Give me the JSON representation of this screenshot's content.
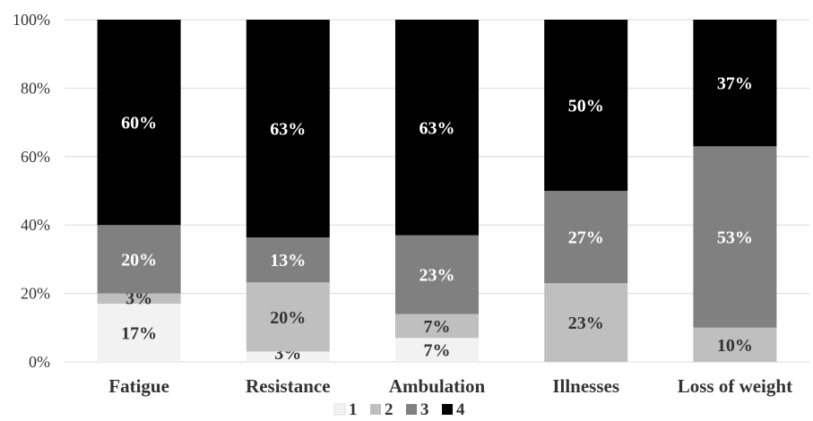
{
  "chart_data": {
    "type": "bar",
    "stacked": true,
    "normalized": true,
    "categories": [
      "Fatigue",
      "Resistance",
      "Ambulation",
      "Illnesses",
      "Loss of weight"
    ],
    "series": [
      {
        "name": "1",
        "color": "#f2f2f2",
        "values": [
          17,
          3,
          7,
          0,
          0
        ],
        "labels": [
          "17%",
          "3%",
          "7%",
          "",
          ""
        ]
      },
      {
        "name": "2",
        "color": "#bfbfbf",
        "values": [
          3,
          20,
          7,
          23,
          10
        ],
        "labels": [
          "3%",
          "20%",
          "7%",
          "23%",
          "10%"
        ]
      },
      {
        "name": "3",
        "color": "#808080",
        "values": [
          20,
          13,
          23,
          27,
          53
        ],
        "labels": [
          "20%",
          "13%",
          "23%",
          "27%",
          "53%"
        ]
      },
      {
        "name": "4",
        "color": "#000000",
        "values": [
          60,
          63,
          63,
          50,
          37
        ],
        "labels": [
          "60%",
          "63%",
          "63%",
          "50%",
          "37%"
        ]
      }
    ],
    "yticks": [
      "0%",
      "20%",
      "40%",
      "60%",
      "80%",
      "100%"
    ],
    "ylim": [
      0,
      100
    ],
    "grid": true,
    "legend": "bottom"
  }
}
